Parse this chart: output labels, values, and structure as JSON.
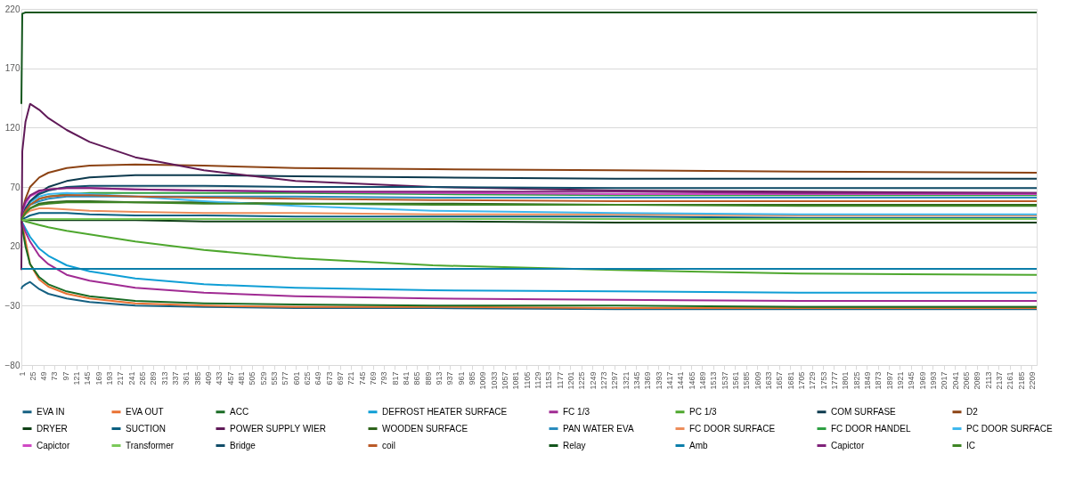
{
  "chart_data": {
    "type": "line",
    "x": [
      1,
      3,
      10,
      20,
      40,
      60,
      100,
      150,
      250,
      400,
      600,
      900,
      1300,
      1700,
      2220
    ],
    "xlim": [
      1,
      2220
    ],
    "xticks": [
      1,
      25,
      49,
      73,
      97,
      121,
      145,
      169,
      193,
      217,
      241,
      265,
      289,
      313,
      337,
      361,
      385,
      409,
      433,
      457,
      481,
      505,
      529,
      553,
      577,
      601,
      625,
      649,
      673,
      697,
      721,
      745,
      769,
      793,
      817,
      841,
      865,
      889,
      913,
      937,
      961,
      985,
      1009,
      1033,
      1057,
      1081,
      1105,
      1129,
      1153,
      1177,
      1201,
      1225,
      1249,
      1273,
      1297,
      1321,
      1345,
      1369,
      1393,
      1417,
      1441,
      1465,
      1489,
      1513,
      1537,
      1561,
      1585,
      1609,
      1633,
      1657,
      1681,
      1705,
      1729,
      1753,
      1777,
      1801,
      1825,
      1849,
      1873,
      1897,
      1921,
      1945,
      1969,
      1993,
      2017,
      2041,
      2065,
      2089,
      2113,
      2137,
      2161,
      2185,
      2209
    ],
    "ylim": [
      -80,
      220
    ],
    "yticks": [
      -80,
      -30,
      20,
      70,
      120,
      170,
      220
    ],
    "grid": "y",
    "legend": "bottom",
    "marker": "none",
    "line_style": "solid",
    "series": [
      {
        "name": "EVA IN",
        "color": "#156082",
        "values": [
          -16,
          -14,
          -12,
          -10,
          -16,
          -20,
          -24,
          -27,
          -30,
          -31,
          -32,
          -32,
          -33,
          -33,
          -33
        ]
      },
      {
        "name": "EVA OUT",
        "color": "#e97132",
        "values": [
          42,
          38,
          25,
          5,
          -8,
          -14,
          -20,
          -24,
          -28,
          -30,
          -31,
          -31,
          -32,
          -32,
          -32
        ]
      },
      {
        "name": "ACC",
        "color": "#196b24",
        "values": [
          42,
          35,
          20,
          5,
          -6,
          -12,
          -18,
          -22,
          -26,
          -28,
          -29,
          -30,
          -30,
          -31,
          -31
        ]
      },
      {
        "name": "DEFROST HEATER SURFACE",
        "color": "#0f9ed5",
        "values": [
          42,
          40,
          35,
          28,
          18,
          12,
          4,
          -1,
          -7,
          -12,
          -15,
          -17,
          -18,
          -19,
          -19
        ]
      },
      {
        "name": "FC 1/3",
        "color": "#a02b93",
        "values": [
          42,
          39,
          32,
          24,
          12,
          5,
          -4,
          -9,
          -15,
          -19,
          -22,
          -24,
          -25,
          -26,
          -26
        ]
      },
      {
        "name": "PC 1/3",
        "color": "#4ea72e",
        "values": [
          42,
          42,
          41,
          40,
          38,
          36,
          33,
          30,
          24,
          17,
          10,
          4,
          0,
          -3,
          -4
        ]
      },
      {
        "name": "COM SURFASE",
        "color": "#0d3a4e",
        "values": [
          42,
          45,
          52,
          58,
          65,
          70,
          75,
          78,
          80,
          80,
          79,
          78,
          77,
          77,
          77
        ]
      },
      {
        "name": "D2",
        "color": "#8c4314",
        "values": [
          45,
          50,
          60,
          70,
          78,
          82,
          86,
          88,
          89,
          88,
          86,
          85,
          84,
          83,
          82
        ]
      },
      {
        "name": "DRYER",
        "color": "#0f4016",
        "values": [
          42,
          42,
          42,
          42,
          42,
          42,
          42,
          42,
          42,
          41,
          41,
          41,
          40,
          40,
          40
        ]
      },
      {
        "name": "SUCTION",
        "color": "#095f80",
        "values": [
          42,
          43,
          44,
          46,
          48,
          48,
          48,
          47,
          46,
          46,
          45,
          45,
          45,
          44,
          44
        ]
      },
      {
        "name": "POWER SUPPLY WIER",
        "color": "#601a58",
        "values": [
          0,
          100,
          125,
          140,
          135,
          128,
          118,
          108,
          95,
          84,
          75,
          70,
          67,
          66,
          65
        ]
      },
      {
        "name": "WOODEN SURFACE",
        "color": "#2f641c",
        "values": [
          42,
          44,
          48,
          52,
          56,
          57,
          58,
          58,
          57,
          57,
          56,
          56,
          55,
          55,
          55
        ]
      },
      {
        "name": "PAN WATER EVA",
        "color": "#2b8cbe",
        "values": [
          42,
          45,
          50,
          55,
          58,
          60,
          62,
          62,
          62,
          62,
          62,
          61,
          61,
          61,
          61
        ]
      },
      {
        "name": "FC DOOR SURFACE",
        "color": "#ed8d5b",
        "values": [
          42,
          44,
          47,
          50,
          52,
          52,
          51,
          50,
          49,
          48,
          48,
          47,
          47,
          46,
          46
        ]
      },
      {
        "name": "FC DOOR HANDEL",
        "color": "#2ea043",
        "values": [
          42,
          45,
          50,
          55,
          60,
          62,
          64,
          65,
          65,
          65,
          65,
          64,
          63,
          63,
          63
        ]
      },
      {
        "name": "PC DOOR SURFACE",
        "color": "#3fb8ee",
        "values": [
          42,
          46,
          52,
          57,
          62,
          64,
          65,
          64,
          62,
          58,
          54,
          50,
          48,
          47,
          47
        ]
      },
      {
        "name": "Capictor",
        "color": "#d04ac4",
        "values": [
          42,
          48,
          56,
          62,
          66,
          68,
          69,
          69,
          68,
          67,
          66,
          65,
          64,
          64,
          64
        ]
      },
      {
        "name": "Transformer",
        "color": "#7bc95a",
        "values": [
          42,
          42,
          42,
          43,
          43,
          43,
          43,
          43,
          43,
          43,
          43,
          43,
          43,
          43,
          43
        ]
      },
      {
        "name": "Bridge",
        "color": "#114d69",
        "values": [
          42,
          45,
          52,
          58,
          64,
          67,
          70,
          71,
          71,
          71,
          70,
          70,
          69,
          69,
          69
        ]
      },
      {
        "name": "coil",
        "color": "#ba5a28",
        "values": [
          42,
          45,
          50,
          55,
          60,
          62,
          63,
          63,
          62,
          61,
          60,
          59,
          58,
          58,
          58
        ]
      },
      {
        "name": "Relay",
        "color": "#14561d",
        "values": [
          140,
          216,
          217,
          217,
          217,
          217,
          217,
          217,
          217,
          217,
          217,
          217,
          217,
          217,
          217
        ]
      },
      {
        "name": "Amb",
        "color": "#0c7eaa",
        "values": [
          1,
          1,
          1,
          1,
          1,
          1,
          1,
          1,
          1,
          1,
          1,
          1,
          1,
          1,
          1
        ]
      },
      {
        "name": "Capictor",
        "color": "#80227a",
        "values": [
          42,
          50,
          58,
          63,
          67,
          68,
          69,
          69,
          68,
          67,
          66,
          66,
          66,
          65,
          65
        ]
      },
      {
        "name": "IC",
        "color": "#3e8525",
        "values": [
          42,
          44,
          48,
          52,
          55,
          56,
          57,
          57,
          57,
          56,
          56,
          55,
          55,
          54,
          54
        ]
      }
    ]
  }
}
